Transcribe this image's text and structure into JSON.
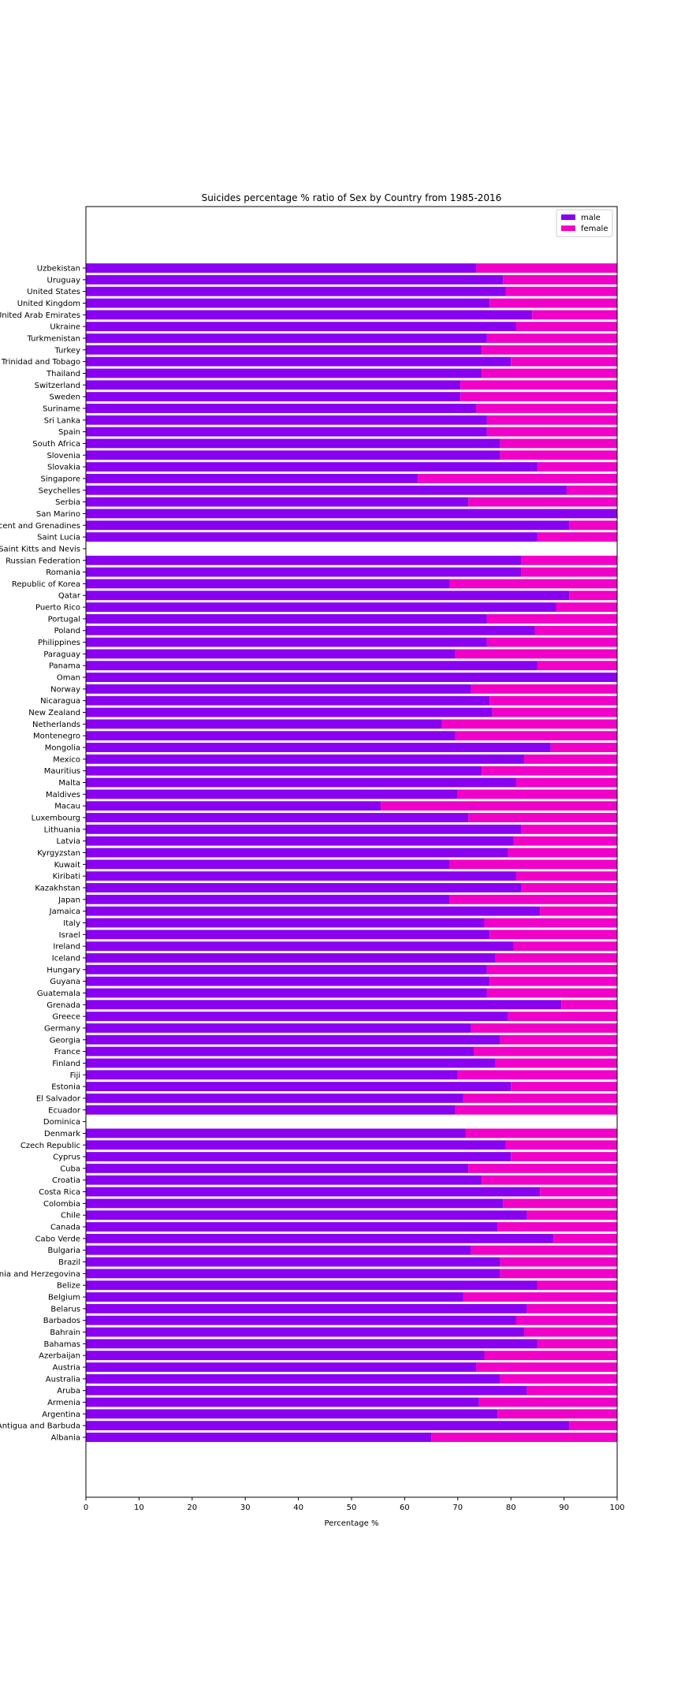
{
  "chart_data": {
    "type": "bar",
    "orientation": "horizontal",
    "stacked": true,
    "title": "Suicides percentage % ratio of Sex by Country from 1985-2016",
    "xlabel": "Percentage %",
    "ylabel": "",
    "xlim": [
      0,
      100
    ],
    "xticks": [
      0,
      10,
      20,
      30,
      40,
      50,
      60,
      70,
      80,
      90,
      100
    ],
    "grid": false,
    "legend_position": "top-right",
    "colors": {
      "male": "#8a00f0",
      "female": "#f000c8"
    },
    "categories": [
      "Albania",
      "Antigua and Barbuda",
      "Argentina",
      "Armenia",
      "Aruba",
      "Australia",
      "Austria",
      "Azerbaijan",
      "Bahamas",
      "Bahrain",
      "Barbados",
      "Belarus",
      "Belgium",
      "Belize",
      "Bosnia and Herzegovina",
      "Brazil",
      "Bulgaria",
      "Cabo Verde",
      "Canada",
      "Chile",
      "Colombia",
      "Costa Rica",
      "Croatia",
      "Cuba",
      "Cyprus",
      "Czech Republic",
      "Denmark",
      "Dominica",
      "Ecuador",
      "El Salvador",
      "Estonia",
      "Fiji",
      "Finland",
      "France",
      "Georgia",
      "Germany",
      "Greece",
      "Grenada",
      "Guatemala",
      "Guyana",
      "Hungary",
      "Iceland",
      "Ireland",
      "Israel",
      "Italy",
      "Jamaica",
      "Japan",
      "Kazakhstan",
      "Kiribati",
      "Kuwait",
      "Kyrgyzstan",
      "Latvia",
      "Lithuania",
      "Luxembourg",
      "Macau",
      "Maldives",
      "Malta",
      "Mauritius",
      "Mexico",
      "Mongolia",
      "Montenegro",
      "Netherlands",
      "New Zealand",
      "Nicaragua",
      "Norway",
      "Oman",
      "Panama",
      "Paraguay",
      "Philippines",
      "Poland",
      "Portugal",
      "Puerto Rico",
      "Qatar",
      "Republic of Korea",
      "Romania",
      "Russian Federation",
      "Saint Kitts and Nevis",
      "Saint Lucia",
      "Saint Vincent and Grenadines",
      "San Marino",
      "Serbia",
      "Seychelles",
      "Singapore",
      "Slovakia",
      "Slovenia",
      "South Africa",
      "Spain",
      "Sri Lanka",
      "Suriname",
      "Sweden",
      "Switzerland",
      "Thailand",
      "Trinidad and Tobago",
      "Turkey",
      "Turkmenistan",
      "Ukraine",
      "United Arab Emirates",
      "United Kingdom",
      "United States",
      "Uruguay",
      "Uzbekistan"
    ],
    "series": [
      {
        "name": "male",
        "values": [
          65.0,
          91.0,
          77.5,
          74.0,
          83.0,
          78.0,
          73.5,
          75.0,
          85.0,
          82.5,
          81.0,
          83.0,
          71.0,
          85.0,
          78.0,
          78.0,
          72.5,
          88.0,
          77.5,
          83.0,
          78.5,
          85.5,
          74.5,
          72.0,
          80.0,
          79.0,
          71.5,
          0,
          69.5,
          71.0,
          80.0,
          70.0,
          77.0,
          73.0,
          78.0,
          72.5,
          79.5,
          89.5,
          75.5,
          76.0,
          75.5,
          77.0,
          80.5,
          76.0,
          75.0,
          85.5,
          68.5,
          82.0,
          81.0,
          68.5,
          79.5,
          80.5,
          82.0,
          72.0,
          55.5,
          70.0,
          81.0,
          74.5,
          82.5,
          87.5,
          69.5,
          67.0,
          76.5,
          76.0,
          72.5,
          100.0,
          85.0,
          69.5,
          75.5,
          84.5,
          75.5,
          88.5,
          91.0,
          68.5,
          82.0,
          82.0,
          0,
          85.0,
          91.0,
          100.0,
          72.0,
          90.5,
          62.5,
          85.0,
          78.0,
          78.0,
          75.5,
          75.5,
          73.5,
          70.5,
          70.5,
          74.5,
          80.0,
          74.5,
          75.5,
          81.0,
          84.0,
          76.0,
          79.0,
          78.5,
          73.5
        ]
      },
      {
        "name": "female",
        "values": [
          35.0,
          9.0,
          22.5,
          26.0,
          17.0,
          22.0,
          26.5,
          25.0,
          15.0,
          17.5,
          19.0,
          17.0,
          29.0,
          15.0,
          22.0,
          22.0,
          27.5,
          12.0,
          22.5,
          17.0,
          21.5,
          14.5,
          25.5,
          28.0,
          20.0,
          21.0,
          28.5,
          0,
          30.5,
          29.0,
          20.0,
          30.0,
          23.0,
          27.0,
          22.0,
          27.5,
          20.5,
          10.5,
          24.5,
          24.0,
          24.5,
          23.0,
          19.5,
          24.0,
          25.0,
          14.5,
          31.5,
          18.0,
          19.0,
          31.5,
          20.5,
          19.5,
          18.0,
          28.0,
          44.5,
          30.0,
          19.0,
          25.5,
          17.5,
          12.5,
          30.5,
          33.0,
          23.5,
          24.0,
          27.5,
          0.0,
          15.0,
          30.5,
          24.5,
          15.5,
          24.5,
          11.5,
          9.0,
          31.5,
          18.0,
          18.0,
          0,
          15.0,
          9.0,
          0.0,
          28.0,
          9.5,
          37.5,
          15.0,
          22.0,
          22.0,
          24.5,
          24.5,
          26.5,
          29.5,
          29.5,
          25.5,
          20.0,
          25.5,
          24.5,
          19.0,
          16.0,
          24.0,
          21.0,
          21.5,
          26.5
        ]
      }
    ]
  }
}
